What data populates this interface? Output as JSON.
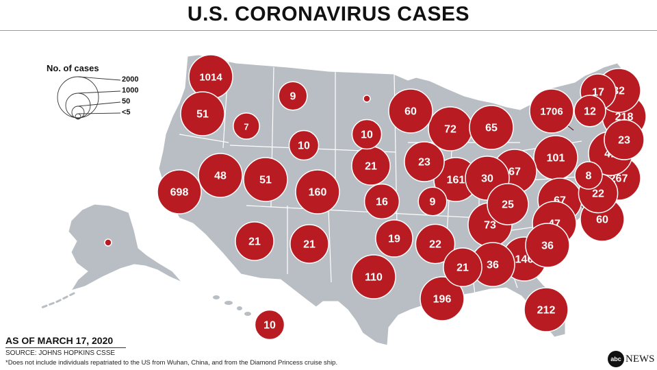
{
  "title": "U.S. CORONAVIRUS CASES",
  "legend": {
    "title": "No. of cases",
    "labels": [
      "2000",
      "1000",
      "50",
      "<5"
    ]
  },
  "as_of": "AS OF MARCH 17, 2020",
  "source": "SOURCE: JOHNS HOPKINS CSSE",
  "footnote": "*Does not include individuals repatriated to the US from Wuhan, China, and from the Diamond Princess cruise ship.",
  "brand": {
    "logo": "abc",
    "name": "NEWS"
  },
  "colors": {
    "bubble": "#b81c22",
    "land": "#b9bec4",
    "border": "#ffffff"
  },
  "states": [
    {
      "state": "Washington",
      "cases": "1014"
    },
    {
      "state": "Oregon",
      "cases": "51"
    },
    {
      "state": "Idaho",
      "cases": "7"
    },
    {
      "state": "Montana",
      "cases": "9"
    },
    {
      "state": "North Dakota",
      "cases": ""
    },
    {
      "state": "Wyoming",
      "cases": "10"
    },
    {
      "state": "South Dakota",
      "cases": "10"
    },
    {
      "state": "Minnesota",
      "cases": "60"
    },
    {
      "state": "Wisconsin",
      "cases": "72"
    },
    {
      "state": "Michigan",
      "cases": "65"
    },
    {
      "state": "California",
      "cases": "698"
    },
    {
      "state": "Nevada",
      "cases": "48"
    },
    {
      "state": "Utah",
      "cases": "51"
    },
    {
      "state": "Colorado",
      "cases": "160"
    },
    {
      "state": "Nebraska",
      "cases": "21"
    },
    {
      "state": "Iowa",
      "cases": "23"
    },
    {
      "state": "Illinois",
      "cases": "161"
    },
    {
      "state": "Indiana",
      "cases": "30"
    },
    {
      "state": "Ohio",
      "cases": "67"
    },
    {
      "state": "Pennsylvania",
      "cases": "101"
    },
    {
      "state": "New York",
      "cases": "1706"
    },
    {
      "state": "Vermont",
      "cases": "12"
    },
    {
      "state": "New Hampshire",
      "cases": "17"
    },
    {
      "state": "Maine",
      "cases": "32"
    },
    {
      "state": "Massachusetts",
      "cases": "218"
    },
    {
      "state": "Rhode Island",
      "cases": "23"
    },
    {
      "state": "Connecticut",
      "cases": "41"
    },
    {
      "state": "New Jersey",
      "cases": "267"
    },
    {
      "state": "Delaware",
      "cases": "8"
    },
    {
      "state": "Maryland",
      "cases": "22"
    },
    {
      "state": "District of Columbia",
      "cases": "60"
    },
    {
      "state": "Virginia",
      "cases": "67"
    },
    {
      "state": "West Virginia",
      "cases": "25"
    },
    {
      "state": "Kansas",
      "cases": "16"
    },
    {
      "state": "Missouri",
      "cases": "9"
    },
    {
      "state": "Kentucky",
      "cases": "73"
    },
    {
      "state": "North Carolina",
      "cases": "47"
    },
    {
      "state": "South Carolina",
      "cases": "36"
    },
    {
      "state": "Tennessee",
      "cases": "22"
    },
    {
      "state": "Arizona",
      "cases": "21"
    },
    {
      "state": "New Mexico",
      "cases": "21"
    },
    {
      "state": "Oklahoma",
      "cases": "19"
    },
    {
      "state": "Texas",
      "cases": "110"
    },
    {
      "state": "Mississippi",
      "cases": "21"
    },
    {
      "state": "Alabama",
      "cases": "36"
    },
    {
      "state": "Georgia",
      "cases": "146"
    },
    {
      "state": "Louisiana",
      "cases": "196"
    },
    {
      "state": "Florida",
      "cases": "212"
    },
    {
      "state": "Alaska",
      "cases": ""
    },
    {
      "state": "Hawaii",
      "cases": "10"
    }
  ]
}
